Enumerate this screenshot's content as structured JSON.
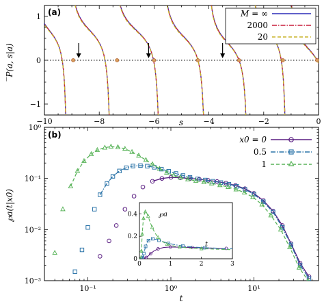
{
  "chart_data": [
    {
      "panel": "(a)",
      "type": "line",
      "xlabel": "s",
      "ylabel": "̅P(a, s|a)",
      "xlim": [
        -10,
        0
      ],
      "ylim": [
        -1.25,
        1.25
      ],
      "x_ticks": [
        -10,
        -8,
        -6,
        -4,
        -2,
        0
      ],
      "y_ticks": [
        -1,
        -0.75,
        -0.5,
        -0.25,
        0,
        0.25,
        0.5,
        0.75,
        1
      ],
      "y_tick_labels": [
        "−1",
        "",
        "",
        "",
        "0",
        "",
        "",
        "",
        "1"
      ],
      "x_tick_labels": [
        "−10",
        "−8",
        "−6",
        "−4",
        "−2",
        "0"
      ],
      "legend_placement": "top-right",
      "series": [
        {
          "name": "M = ∞",
          "color": "#2b2bb8",
          "style": "solid"
        },
        {
          "name": "2000",
          "color": "#c81e3c",
          "style": "dashdot"
        },
        {
          "name": "20",
          "color": "#c8b428",
          "style": "dashed"
        }
      ],
      "poles": [
        -9.15,
        -7.55,
        -5.75,
        -4.1,
        -2.55,
        -1.15
      ],
      "zeros": [
        -8.95,
        -7.35,
        -6.0,
        -4.4,
        -2.9,
        -1.3,
        -0.05
      ],
      "arrows": [
        -8.75,
        -6.2,
        -3.5
      ],
      "zero_line": "dotted"
    },
    {
      "panel": "(b)",
      "type": "line",
      "xlabel": "t",
      "ylabel": "℘a(t|x0)",
      "xscale": "log",
      "yscale": "log",
      "xlim": [
        0.03,
        60
      ],
      "ylim": [
        0.001,
        1
      ],
      "x_tick_labels": [
        "10⁻¹",
        "10⁰",
        "10¹"
      ],
      "y_tick_labels": [
        "10⁻³",
        "10⁻²",
        "10⁻¹",
        "10⁰"
      ],
      "legend_placement": "top-right",
      "series": [
        {
          "name": "x0 = 0",
          "color": "#5a1e82",
          "marker": "circle",
          "style": "solid",
          "x": [
            0.14,
            0.18,
            0.22,
            0.28,
            0.36,
            0.46,
            0.6,
            0.78,
            1.0,
            1.3,
            1.7,
            2.2,
            2.8,
            3.6,
            4.6,
            6.0,
            7.8,
            10,
            13,
            17,
            22,
            28,
            36,
            46
          ],
          "y": [
            0.003,
            0.006,
            0.012,
            0.025,
            0.045,
            0.068,
            0.088,
            0.1,
            0.105,
            0.103,
            0.1,
            0.096,
            0.092,
            0.087,
            0.081,
            0.073,
            0.063,
            0.051,
            0.037,
            0.023,
            0.012,
            0.0053,
            0.0022,
            0.0012
          ]
        },
        {
          "name": "0.5",
          "color": "#2a73a8",
          "marker": "square",
          "style": "dashdot",
          "x": [
            0.07,
            0.085,
            0.1,
            0.12,
            0.14,
            0.17,
            0.2,
            0.24,
            0.29,
            0.35,
            0.43,
            0.52,
            0.63,
            0.77,
            0.94,
            1.15,
            1.4,
            1.7,
            2.1,
            2.6,
            3.2,
            4.0,
            5.0,
            6.2,
            7.8,
            10,
            13,
            17,
            22,
            28,
            36,
            46
          ],
          "y": [
            0.0015,
            0.004,
            0.011,
            0.025,
            0.048,
            0.08,
            0.11,
            0.14,
            0.162,
            0.175,
            0.178,
            0.174,
            0.165,
            0.152,
            0.138,
            0.125,
            0.114,
            0.105,
            0.098,
            0.093,
            0.088,
            0.083,
            0.077,
            0.07,
            0.061,
            0.049,
            0.035,
            0.022,
            0.011,
            0.005,
            0.002,
            0.0011
          ]
        },
        {
          "name": "1",
          "color": "#5ab45a",
          "marker": "triangle",
          "style": "dashed",
          "x": [
            0.04,
            0.05,
            0.062,
            0.075,
            0.09,
            0.11,
            0.13,
            0.16,
            0.19,
            0.23,
            0.28,
            0.34,
            0.41,
            0.5,
            0.6,
            0.73,
            0.89,
            1.08,
            1.3,
            1.6,
            2.0,
            2.5,
            3.1,
            3.9,
            4.9,
            6.1,
            7.7,
            9.7,
            12.5,
            16,
            21,
            27,
            35,
            45
          ],
          "y": [
            0.0035,
            0.025,
            0.07,
            0.14,
            0.22,
            0.3,
            0.36,
            0.4,
            0.42,
            0.41,
            0.38,
            0.33,
            0.28,
            0.23,
            0.19,
            0.155,
            0.13,
            0.115,
            0.104,
            0.096,
            0.09,
            0.085,
            0.08,
            0.074,
            0.068,
            0.061,
            0.053,
            0.043,
            0.031,
            0.019,
            0.01,
            0.0045,
            0.0018,
            0.001
          ]
        }
      ],
      "inset": {
        "ylabel": "℘a",
        "xlabel": "t",
        "xlim": [
          0,
          3
        ],
        "ylim": [
          0,
          0.5
        ],
        "x_ticks": [
          0,
          1,
          2,
          3
        ],
        "y_ticks": [
          0,
          0.2,
          0.4
        ],
        "x_tick_labels": [
          "0",
          "1",
          "2",
          "3"
        ],
        "y_tick_labels": [
          "0",
          "0.2",
          "0.4"
        ]
      }
    }
  ]
}
